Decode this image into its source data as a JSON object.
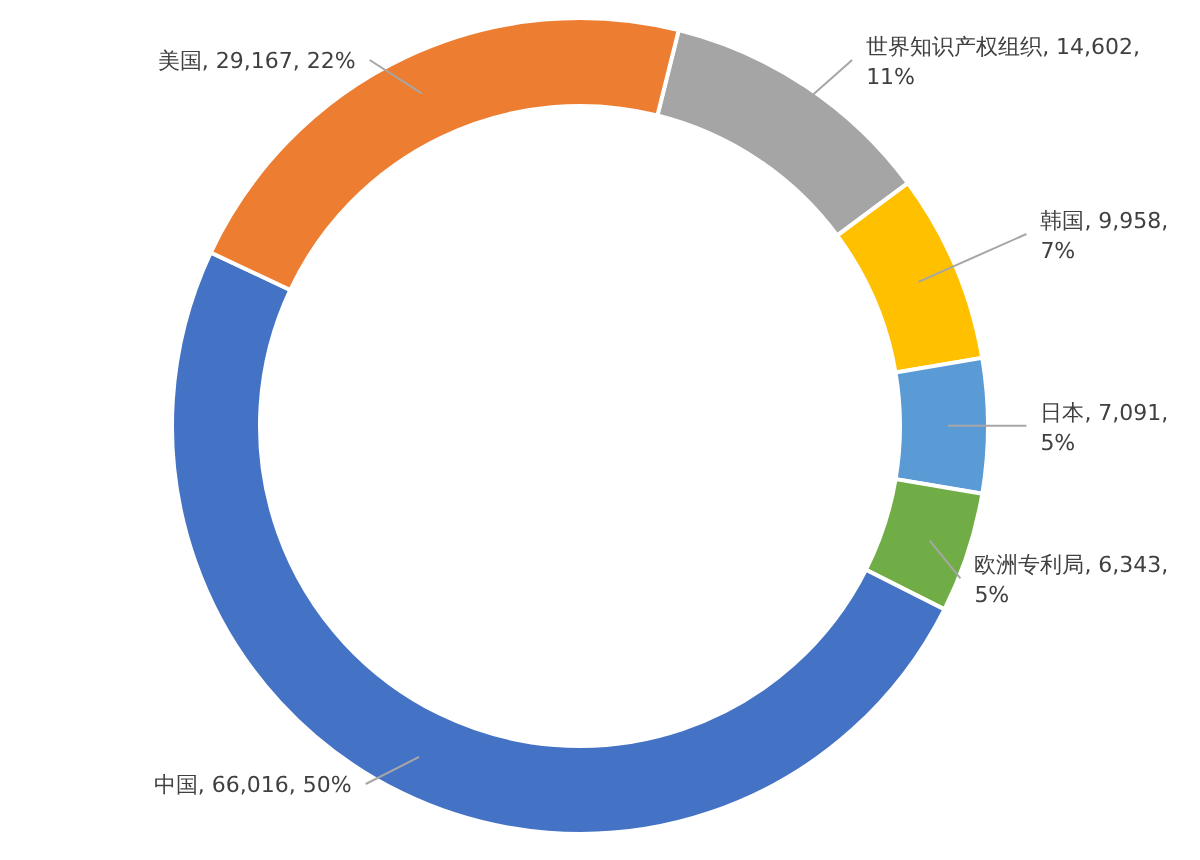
{
  "chart_data": {
    "type": "donut",
    "categories": [
      "世界知识产权组织",
      "韩国",
      "日本",
      "欧洲专利局",
      "中国",
      "美国"
    ],
    "values": [
      14602,
      9958,
      7091,
      6343,
      66016,
      29167
    ],
    "colors": [
      "#a5a5a5",
      "#ffc000",
      "#5b9bd5",
      "#70ad47",
      "#4472c4",
      "#ed7d31"
    ],
    "value_labels": [
      "14,602, 11%",
      "9,958, 7%",
      "7,091, 5%",
      "6,343, 5%",
      "66,016, 50%",
      "29,167, 22%"
    ]
  }
}
